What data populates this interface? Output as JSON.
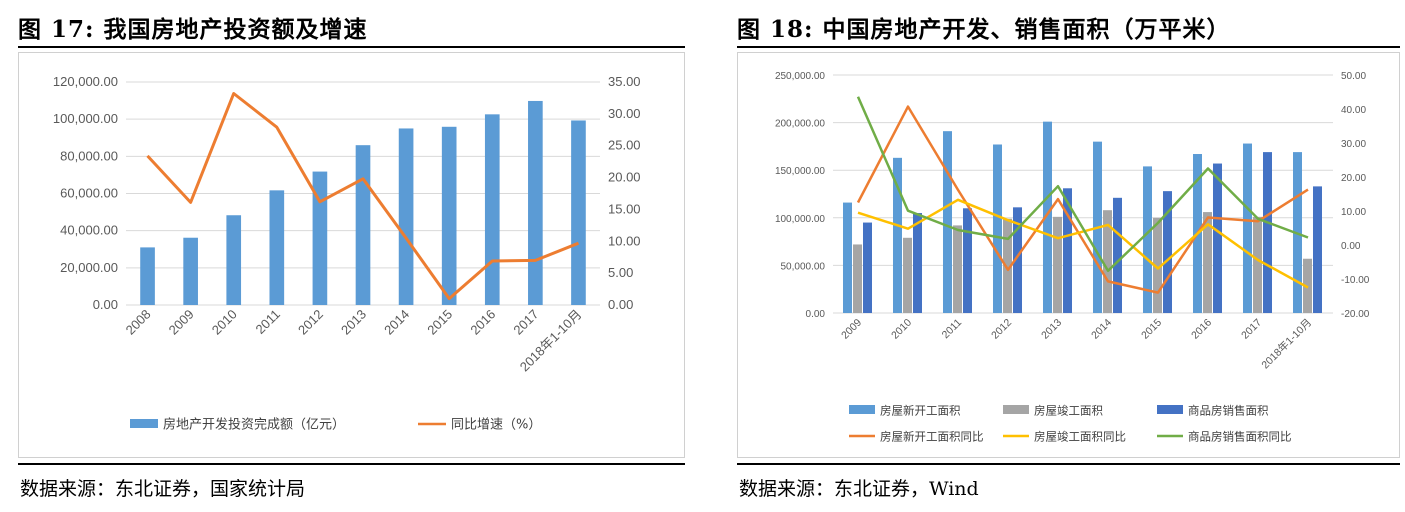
{
  "left": {
    "fig_title": "图 17: 我国房地产投资额及增速",
    "source": "数据来源：东北证券，国家统计局",
    "chart_data": {
      "type": "bar",
      "title": "",
      "categories": [
        "2008",
        "2009",
        "2010",
        "2011",
        "2012",
        "2013",
        "2014",
        "2015",
        "2016",
        "2017",
        "2018年1-10月"
      ],
      "series": [
        {
          "name": "房地产开发投资完成额（亿元）",
          "type": "bar",
          "axis": "left",
          "color": "#5b9bd5",
          "values": [
            31000,
            36200,
            48300,
            61700,
            71800,
            86000,
            95000,
            95900,
            102600,
            109800,
            99300
          ]
        },
        {
          "name": "同比增速（%）",
          "type": "line",
          "axis": "right",
          "color": "#ed7d31",
          "values": [
            23.4,
            16.1,
            33.2,
            27.9,
            16.2,
            19.8,
            10.5,
            1.0,
            6.9,
            7.0,
            9.7
          ]
        }
      ],
      "y_left": {
        "range": [
          0,
          120000
        ],
        "ticks": [
          "0.00",
          "20,000.00",
          "40,000.00",
          "60,000.00",
          "80,000.00",
          "100,000.00",
          "120,000.00"
        ]
      },
      "y_right": {
        "range": [
          0,
          35
        ],
        "ticks": [
          "0.00",
          "5.00",
          "10.00",
          "15.00",
          "20.00",
          "25.00",
          "30.00",
          "35.00"
        ]
      },
      "grid": true,
      "legend_position": "bottom"
    }
  },
  "right": {
    "fig_title": "图 18: 中国房地产开发、销售面积（万平米）",
    "source": "数据来源：东北证券，Wind",
    "chart_data": {
      "type": "bar",
      "title": "",
      "categories": [
        "2009",
        "2010",
        "2011",
        "2012",
        "2013",
        "2014",
        "2015",
        "2016",
        "2017",
        "2018年1-10月"
      ],
      "series": [
        {
          "name": "房屋新开工面积",
          "type": "bar",
          "axis": "left",
          "color": "#5b9bd5",
          "values": [
            116000,
            163000,
            191000,
            177000,
            201000,
            180000,
            154000,
            167000,
            178000,
            169000
          ]
        },
        {
          "name": "房屋竣工面积",
          "type": "bar",
          "axis": "left",
          "color": "#a5a5a5",
          "values": [
            72000,
            79000,
            92000,
            99000,
            101000,
            108000,
            100000,
            106000,
            101000,
            57000
          ]
        },
        {
          "name": "商品房销售面积",
          "type": "bar",
          "axis": "left",
          "color": "#4472c4",
          "values": [
            95000,
            105000,
            110000,
            111000,
            131000,
            121000,
            128000,
            157000,
            169000,
            133000
          ]
        },
        {
          "name": "房屋新开工面积同比",
          "type": "line",
          "axis": "right",
          "color": "#ed7d31",
          "values": [
            12.5,
            40.7,
            16.2,
            -7.3,
            13.5,
            -10.7,
            -14.0,
            8.1,
            7.0,
            16.3
          ]
        },
        {
          "name": "房屋竣工面积同比",
          "type": "line",
          "axis": "right",
          "color": "#ffc000",
          "values": [
            9.5,
            4.8,
            13.3,
            7.3,
            2.0,
            5.9,
            -6.9,
            6.1,
            -4.4,
            -12.5
          ]
        },
        {
          "name": "商品房销售面积同比",
          "type": "line",
          "axis": "right",
          "color": "#70ad47",
          "values": [
            43.6,
            10.1,
            4.4,
            1.8,
            17.3,
            -7.6,
            6.5,
            22.5,
            7.7,
            2.2
          ]
        }
      ],
      "y_left": {
        "range": [
          0,
          250000
        ],
        "ticks": [
          "0.00",
          "50,000.00",
          "100,000.00",
          "150,000.00",
          "200,000.00",
          "250,000.00"
        ]
      },
      "y_right": {
        "range": [
          -20,
          50
        ],
        "ticks": [
          "-20.00",
          "-10.00",
          "0.00",
          "10.00",
          "20.00",
          "30.00",
          "40.00",
          "50.00"
        ]
      },
      "grid": true,
      "legend_position": "bottom"
    }
  }
}
